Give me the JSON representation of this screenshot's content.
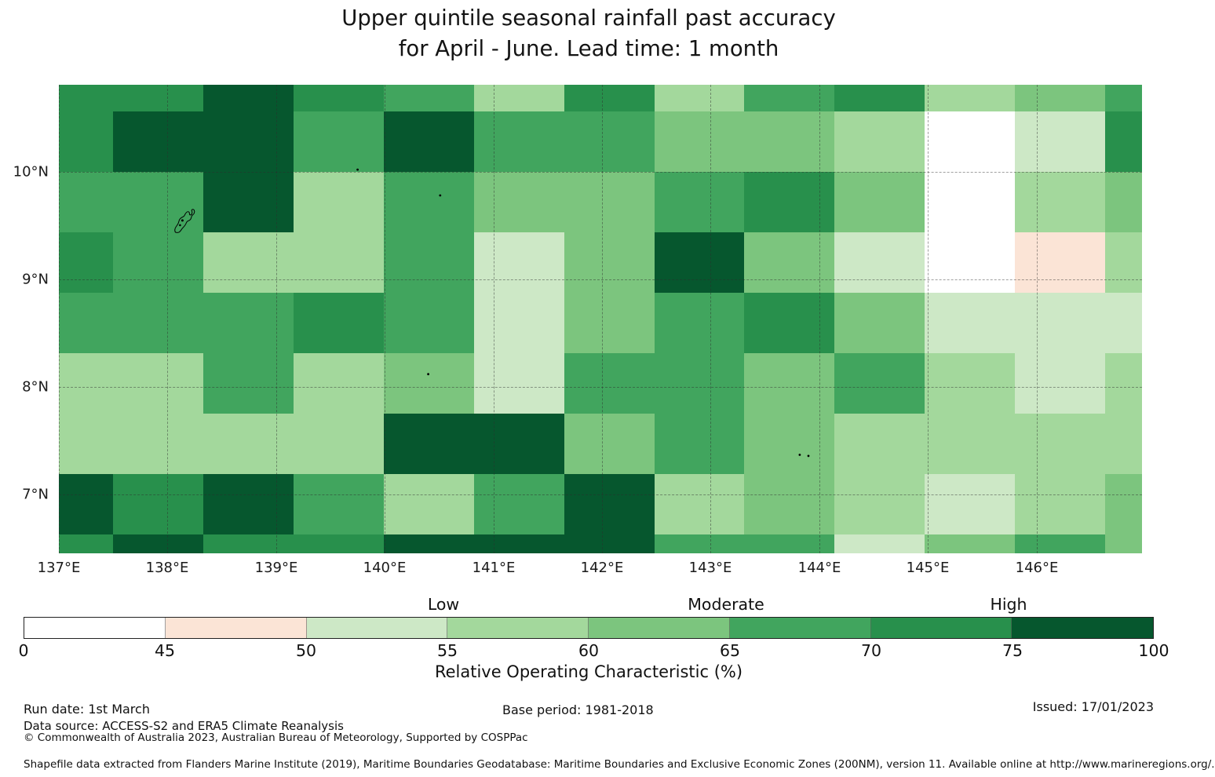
{
  "title": {
    "line1": "Upper quintile seasonal rainfall past accuracy",
    "line2": "for April - June. Lead time: 1 month"
  },
  "chart_data": {
    "type": "heatmap",
    "title": "Upper quintile seasonal rainfall past accuracy for April - June. Lead time: 1 month",
    "value_name": "Relative Operating Characteristic (%)",
    "lon_range": [
      137.0,
      146.971
    ],
    "lat_range": [
      6.455,
      10.808
    ],
    "lon_edges": [
      137.0,
      137.499,
      138.329,
      139.16,
      139.991,
      140.822,
      141.653,
      142.484,
      143.308,
      144.139,
      144.97,
      145.8,
      146.631,
      146.971
    ],
    "lat_edges": [
      10.808,
      10.56,
      9.999,
      9.437,
      8.876,
      8.314,
      7.753,
      7.191,
      6.63,
      6.455
    ],
    "values_roc_percent": [
      [
        72,
        72,
        85,
        72,
        67,
        57,
        72,
        57,
        67,
        72,
        57,
        62,
        67
      ],
      [
        72,
        85,
        85,
        67,
        85,
        67,
        67,
        62,
        62,
        57,
        40,
        52,
        72
      ],
      [
        67,
        67,
        85,
        57,
        67,
        62,
        62,
        67,
        72,
        62,
        40,
        57,
        62
      ],
      [
        72,
        67,
        57,
        57,
        67,
        52,
        62,
        85,
        62,
        52,
        40,
        47,
        57
      ],
      [
        67,
        67,
        67,
        72,
        67,
        52,
        62,
        67,
        72,
        62,
        52,
        52,
        52
      ],
      [
        57,
        57,
        67,
        57,
        62,
        52,
        67,
        67,
        62,
        67,
        57,
        52,
        57
      ],
      [
        57,
        57,
        57,
        57,
        85,
        85,
        62,
        67,
        62,
        57,
        57,
        57,
        57
      ],
      [
        85,
        72,
        85,
        67,
        57,
        67,
        85,
        57,
        62,
        57,
        52,
        57,
        62
      ],
      [
        72,
        85,
        72,
        72,
        85,
        85,
        85,
        67,
        67,
        52,
        62,
        67,
        62
      ]
    ],
    "x_ticks": [
      {
        "lon": 137,
        "label": "137°E"
      },
      {
        "lon": 138,
        "label": "138°E"
      },
      {
        "lon": 139,
        "label": "139°E"
      },
      {
        "lon": 140,
        "label": "140°E"
      },
      {
        "lon": 141,
        "label": "141°E"
      },
      {
        "lon": 142,
        "label": "142°E"
      },
      {
        "lon": 143,
        "label": "143°E"
      },
      {
        "lon": 144,
        "label": "144°E"
      },
      {
        "lon": 145,
        "label": "145°E"
      },
      {
        "lon": 146,
        "label": "146°E"
      }
    ],
    "y_ticks": [
      {
        "lat": 10,
        "label": "10°N"
      },
      {
        "lat": 9,
        "label": "9°N"
      },
      {
        "lat": 8,
        "label": "8°N"
      },
      {
        "lat": 7,
        "label": "7°N"
      }
    ],
    "grid": true,
    "legend_position": "bottom",
    "colorbar": {
      "axis_label": "Relative Operating Characteristic (%)",
      "bin_edges": [
        0,
        45,
        50,
        55,
        60,
        65,
        70,
        75,
        100
      ],
      "bin_colors": [
        "#ffffff",
        "#fbe4d6",
        "#cde8c6",
        "#a3d89c",
        "#7cc57e",
        "#41a55e",
        "#28904c",
        "#06572e"
      ],
      "categories": [
        {
          "label": "Low",
          "at_value": 55
        },
        {
          "label": "Moderate",
          "at_value": 65
        },
        {
          "label": "High",
          "at_value": 75
        }
      ]
    },
    "land_marks": {
      "main_island": {
        "lon": 138.13,
        "lat": 9.54
      },
      "islets": [
        {
          "lon": 139.75,
          "lat": 10.02
        },
        {
          "lon": 140.51,
          "lat": 9.78
        },
        {
          "lon": 140.4,
          "lat": 8.12
        },
        {
          "lon": 143.82,
          "lat": 7.37
        },
        {
          "lon": 143.9,
          "lat": 7.36
        }
      ]
    }
  },
  "footer": {
    "run_date": "Run date: 1st March",
    "base_period": "Base period: 1981-2018",
    "issued": "Issued: 17/01/2023",
    "data_source": "Data source: ACCESS-S2 and ERA5 Climate Reanalysis",
    "copyright": "© Commonwealth of Australia 2023, Australian Bureau of Meteorology, Supported by COSPPac",
    "shapefile_note": "Shapefile data extracted from Flanders Marine Institute (2019), Maritime Boundaries Geodatabase: Maritime Boundaries and Exclusive Economic Zones (200NM), version 11. Available online at http://www.marineregions.org/."
  }
}
